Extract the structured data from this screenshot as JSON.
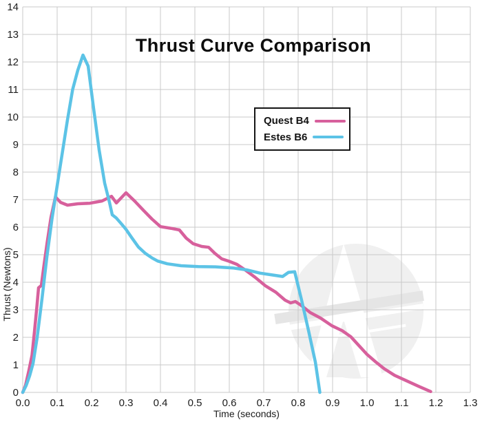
{
  "chart_data": {
    "type": "line",
    "title": "Thrust Curve Comparison",
    "xlabel": "Time (seconds)",
    "ylabel": "Thrust (Newtons)",
    "xlim": [
      0,
      1.3
    ],
    "ylim": [
      0,
      14
    ],
    "x_tick_labels": [
      "0.0",
      "0.1",
      "0.2",
      "0.3",
      "0.4",
      "0.5",
      "0.6",
      "0.7",
      "0.8",
      "0.9",
      "1.0",
      "1.1",
      "1.2",
      "1.3"
    ],
    "y_tick_labels": [
      "0",
      "1",
      "2",
      "3",
      "4",
      "5",
      "6",
      "7",
      "8",
      "9",
      "10",
      "11",
      "12",
      "13",
      "14"
    ],
    "grid": true,
    "grid_color": "#c9c9c9",
    "legend_position": "upper-center",
    "series": [
      {
        "name": "Quest B4",
        "color": "#d7609c",
        "points": [
          [
            0,
            0
          ],
          [
            0.008,
            0.25
          ],
          [
            0.018,
            0.8
          ],
          [
            0.027,
            1.35
          ],
          [
            0.034,
            2.2
          ],
          [
            0.041,
            3.1
          ],
          [
            0.046,
            3.8
          ],
          [
            0.054,
            3.88
          ],
          [
            0.061,
            4.55
          ],
          [
            0.071,
            5.45
          ],
          [
            0.082,
            6.35
          ],
          [
            0.095,
            7.1
          ],
          [
            0.11,
            6.9
          ],
          [
            0.13,
            6.8
          ],
          [
            0.16,
            6.85
          ],
          [
            0.195,
            6.87
          ],
          [
            0.23,
            6.95
          ],
          [
            0.258,
            7.12
          ],
          [
            0.272,
            6.88
          ],
          [
            0.3,
            7.25
          ],
          [
            0.325,
            6.95
          ],
          [
            0.35,
            6.62
          ],
          [
            0.375,
            6.3
          ],
          [
            0.4,
            6.02
          ],
          [
            0.43,
            5.96
          ],
          [
            0.455,
            5.9
          ],
          [
            0.475,
            5.6
          ],
          [
            0.495,
            5.4
          ],
          [
            0.52,
            5.3
          ],
          [
            0.54,
            5.27
          ],
          [
            0.558,
            5.05
          ],
          [
            0.578,
            4.85
          ],
          [
            0.6,
            4.76
          ],
          [
            0.622,
            4.65
          ],
          [
            0.648,
            4.43
          ],
          [
            0.675,
            4.18
          ],
          [
            0.705,
            3.87
          ],
          [
            0.735,
            3.64
          ],
          [
            0.762,
            3.35
          ],
          [
            0.778,
            3.25
          ],
          [
            0.792,
            3.3
          ],
          [
            0.81,
            3.15
          ],
          [
            0.835,
            2.9
          ],
          [
            0.865,
            2.7
          ],
          [
            0.898,
            2.42
          ],
          [
            0.928,
            2.24
          ],
          [
            0.953,
            2.02
          ],
          [
            0.975,
            1.72
          ],
          [
            1.0,
            1.38
          ],
          [
            1.024,
            1.12
          ],
          [
            1.05,
            0.86
          ],
          [
            1.08,
            0.62
          ],
          [
            1.115,
            0.42
          ],
          [
            1.15,
            0.22
          ],
          [
            1.185,
            0.03
          ]
        ]
      },
      {
        "name": "Estes B6",
        "color": "#5cc3e6",
        "points": [
          [
            0,
            0
          ],
          [
            0.01,
            0.25
          ],
          [
            0.02,
            0.6
          ],
          [
            0.03,
            1.05
          ],
          [
            0.042,
            2.0
          ],
          [
            0.056,
            3.4
          ],
          [
            0.07,
            4.9
          ],
          [
            0.085,
            6.3
          ],
          [
            0.1,
            7.5
          ],
          [
            0.115,
            8.7
          ],
          [
            0.13,
            9.9
          ],
          [
            0.145,
            11.0
          ],
          [
            0.16,
            11.7
          ],
          [
            0.175,
            12.25
          ],
          [
            0.19,
            11.85
          ],
          [
            0.205,
            10.4
          ],
          [
            0.222,
            8.8
          ],
          [
            0.238,
            7.6
          ],
          [
            0.252,
            6.9
          ],
          [
            0.26,
            6.45
          ],
          [
            0.272,
            6.33
          ],
          [
            0.286,
            6.13
          ],
          [
            0.3,
            5.92
          ],
          [
            0.316,
            5.63
          ],
          [
            0.336,
            5.28
          ],
          [
            0.356,
            5.05
          ],
          [
            0.376,
            4.88
          ],
          [
            0.392,
            4.77
          ],
          [
            0.42,
            4.67
          ],
          [
            0.46,
            4.6
          ],
          [
            0.51,
            4.57
          ],
          [
            0.56,
            4.56
          ],
          [
            0.61,
            4.52
          ],
          [
            0.65,
            4.45
          ],
          [
            0.69,
            4.33
          ],
          [
            0.728,
            4.26
          ],
          [
            0.755,
            4.21
          ],
          [
            0.772,
            4.36
          ],
          [
            0.79,
            4.38
          ],
          [
            0.81,
            3.35
          ],
          [
            0.83,
            2.25
          ],
          [
            0.85,
            1.1
          ],
          [
            0.863,
            0
          ]
        ]
      }
    ]
  },
  "watermark": {
    "shape": "apogee-circle-a-logo",
    "circle_color": "#f0f0f0",
    "letter_color": "#ffffff",
    "band_color": "#e5e5e5"
  }
}
